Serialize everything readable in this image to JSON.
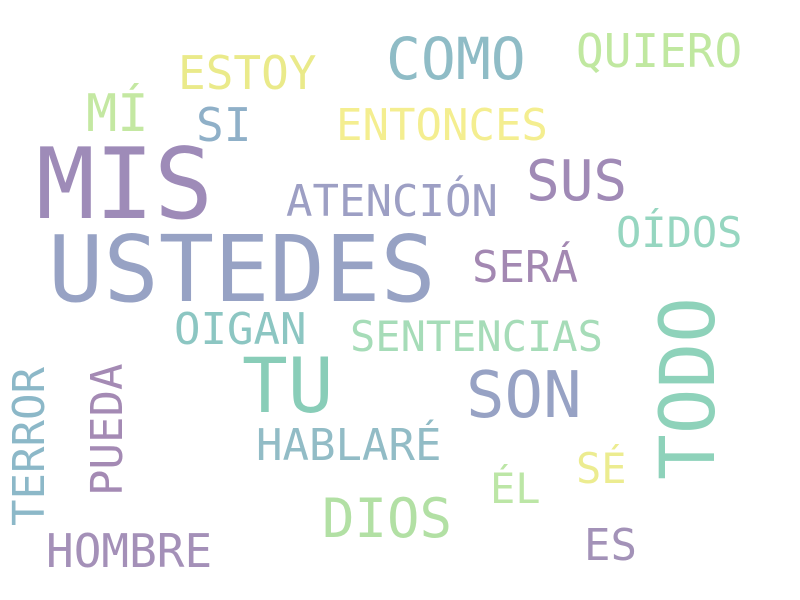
{
  "words": {
    "mis": {
      "text": "MIS",
      "color": "#9e8bb8"
    },
    "ustedes": {
      "text": "USTEDES",
      "color": "#97a2c4"
    },
    "tu": {
      "text": "TU",
      "color": "#89cdb8"
    },
    "son": {
      "text": "SON",
      "color": "#97a2c4"
    },
    "como": {
      "text": "COMO",
      "color": "#8fbcc6"
    },
    "sus": {
      "text": "SUS",
      "color": "#a08ab6"
    },
    "dios": {
      "text": "DIOS",
      "color": "#b2e0a4"
    },
    "quiero": {
      "text": "QUIERO",
      "color": "#c0e8a0"
    },
    "estoy": {
      "text": "ESTOY",
      "color": "#eaea8a"
    },
    "mi": {
      "text": "MÍ",
      "color": "#c4e8a2"
    },
    "si": {
      "text": "SI",
      "color": "#8fb0c8"
    },
    "entonces": {
      "text": "ENTONCES",
      "color": "#f4ee90"
    },
    "atencion": {
      "text": "ATENCIÓN",
      "color": "#9d9fc4"
    },
    "oidos": {
      "text": "OÍDOS",
      "color": "#96d6c0"
    },
    "sera": {
      "text": "SERÁ",
      "color": "#a388b2"
    },
    "oigan": {
      "text": "OIGAN",
      "color": "#8cc6c2"
    },
    "sentencias": {
      "text": "SENTENCIAS",
      "color": "#a6dcb8"
    },
    "todo": {
      "text": "TODO",
      "color": "#8ed2ba"
    },
    "hablare": {
      "text": "HABLARÉ",
      "color": "#92bcc6"
    },
    "se": {
      "text": "SÉ",
      "color": "#ecec90"
    },
    "el": {
      "text": "ÉL",
      "color": "#bce6a6"
    },
    "terror": {
      "text": "TERROR",
      "color": "#8cb8c8"
    },
    "pueda": {
      "text": "PUEDA",
      "color": "#a48ab4"
    },
    "hombre": {
      "text": "HOMBRE",
      "color": "#a490b8"
    },
    "es": {
      "text": "ES",
      "color": "#a392b8"
    }
  }
}
